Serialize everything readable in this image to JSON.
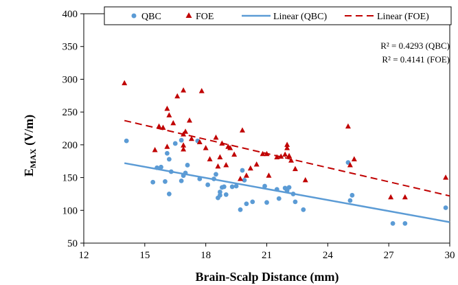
{
  "chart_data": {
    "type": "scatter",
    "xlabel": "Brain-Scalp Distance (mm)",
    "ylabel_main": "E",
    "ylabel_sub": "MAX",
    "ylabel_rest": " (V/m)",
    "xlim": [
      12,
      30
    ],
    "ylim": [
      50,
      400
    ],
    "xticks": [
      12,
      15,
      18,
      21,
      24,
      27,
      30
    ],
    "yticks": [
      50,
      100,
      150,
      200,
      250,
      300,
      350,
      400
    ],
    "grid": false,
    "legend_position": "top",
    "legend": {
      "qbc": "QBC",
      "foe": "FOE",
      "lin_qbc": "Linear (QBC)",
      "lin_foe": "Linear (FOE)"
    },
    "annotations": {
      "r2_qbc": "R² = 0.4293 (QBC)",
      "r2_foe": "R² = 0.4141 (FOE)"
    },
    "colors": {
      "qbc": "#5b9bd5",
      "foe": "#c00000"
    },
    "series": [
      {
        "name": "QBC",
        "marker": "circle",
        "points": [
          [
            14.1,
            206
          ],
          [
            15.4,
            143
          ],
          [
            15.6,
            165
          ],
          [
            15.8,
            166
          ],
          [
            16.0,
            144
          ],
          [
            16.1,
            187
          ],
          [
            16.2,
            178
          ],
          [
            16.2,
            125
          ],
          [
            16.3,
            159
          ],
          [
            16.5,
            202
          ],
          [
            16.8,
            207
          ],
          [
            16.8,
            145
          ],
          [
            16.9,
            153
          ],
          [
            17.0,
            157
          ],
          [
            17.1,
            169
          ],
          [
            17.6,
            206
          ],
          [
            17.7,
            148
          ],
          [
            18.1,
            139
          ],
          [
            18.4,
            148
          ],
          [
            18.5,
            155
          ],
          [
            18.6,
            119
          ],
          [
            18.7,
            123
          ],
          [
            18.7,
            128
          ],
          [
            18.8,
            135
          ],
          [
            18.9,
            136
          ],
          [
            19.0,
            124
          ],
          [
            19.3,
            136
          ],
          [
            19.5,
            137
          ],
          [
            19.7,
            101
          ],
          [
            19.8,
            161
          ],
          [
            19.9,
            146
          ],
          [
            20.0,
            110
          ],
          [
            20.3,
            113
          ],
          [
            20.9,
            137
          ],
          [
            21.0,
            112
          ],
          [
            21.5,
            132
          ],
          [
            21.6,
            118
          ],
          [
            21.9,
            134
          ],
          [
            22.0,
            130
          ],
          [
            22.1,
            135
          ],
          [
            22.3,
            125
          ],
          [
            22.4,
            113
          ],
          [
            22.8,
            101
          ],
          [
            25.0,
            173
          ],
          [
            25.1,
            115
          ],
          [
            25.2,
            123
          ],
          [
            27.2,
            80
          ],
          [
            27.8,
            80
          ],
          [
            29.8,
            104
          ]
        ]
      },
      {
        "name": "FOE",
        "marker": "triangle",
        "points": [
          [
            14.0,
            294
          ],
          [
            15.5,
            192
          ],
          [
            15.7,
            228
          ],
          [
            15.9,
            226
          ],
          [
            16.1,
            255
          ],
          [
            16.1,
            197
          ],
          [
            16.2,
            245
          ],
          [
            16.4,
            233
          ],
          [
            16.6,
            274
          ],
          [
            16.9,
            283
          ],
          [
            16.9,
            193
          ],
          [
            16.9,
            199
          ],
          [
            16.9,
            216
          ],
          [
            17.0,
            220
          ],
          [
            17.2,
            237
          ],
          [
            17.3,
            209
          ],
          [
            17.7,
            204
          ],
          [
            17.8,
            282
          ],
          [
            18.0,
            195
          ],
          [
            18.2,
            178
          ],
          [
            18.5,
            211
          ],
          [
            18.6,
            167
          ],
          [
            18.7,
            181
          ],
          [
            18.8,
            202
          ],
          [
            19.0,
            169
          ],
          [
            19.1,
            197
          ],
          [
            19.2,
            195
          ],
          [
            19.4,
            185
          ],
          [
            19.7,
            148
          ],
          [
            19.8,
            222
          ],
          [
            20.0,
            153
          ],
          [
            20.2,
            164
          ],
          [
            20.5,
            170
          ],
          [
            20.8,
            186
          ],
          [
            21.0,
            186
          ],
          [
            21.1,
            153
          ],
          [
            21.5,
            181
          ],
          [
            21.7,
            182
          ],
          [
            21.9,
            185
          ],
          [
            22.0,
            200
          ],
          [
            22.0,
            195
          ],
          [
            22.1,
            183
          ],
          [
            22.2,
            176
          ],
          [
            22.4,
            163
          ],
          [
            22.9,
            146
          ],
          [
            25.0,
            228
          ],
          [
            25.1,
            169
          ],
          [
            25.3,
            178
          ],
          [
            27.1,
            120
          ],
          [
            27.8,
            120
          ],
          [
            29.8,
            150
          ]
        ]
      }
    ],
    "trendlines": [
      {
        "name": "Linear (QBC)",
        "style": "solid",
        "x": [
          14,
          30
        ],
        "y": [
          172,
          82
        ]
      },
      {
        "name": "Linear (FOE)",
        "style": "dashed",
        "x": [
          14,
          30
        ],
        "y": [
          237,
          122
        ]
      }
    ]
  }
}
